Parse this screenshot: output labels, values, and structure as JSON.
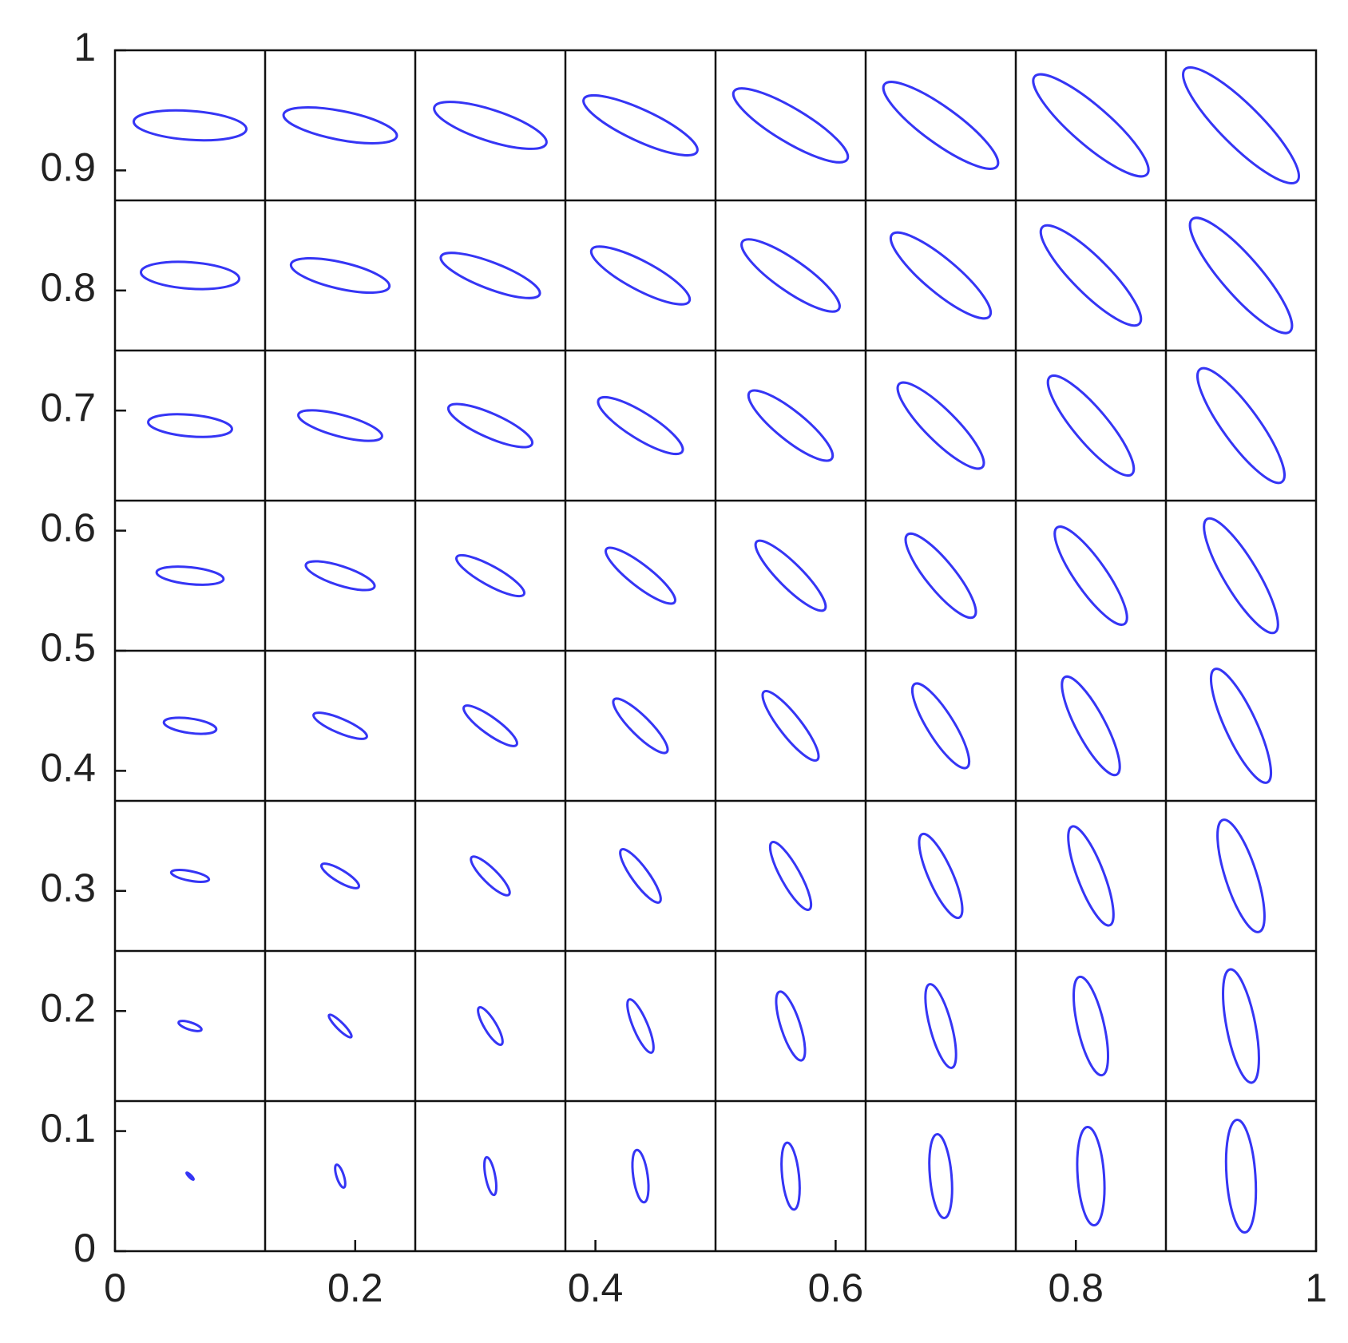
{
  "chart_data": {
    "type": "ellipse",
    "color": "#3535f5",
    "xlim": [
      0,
      1
    ],
    "ylim": [
      0,
      1
    ],
    "xticks": [
      0,
      0.2,
      0.4,
      0.6,
      0.8,
      1
    ],
    "yticks": [
      0,
      0.1,
      0.2,
      0.3,
      0.4,
      0.5,
      0.6,
      0.7,
      0.8,
      0.9,
      1
    ],
    "grid_lines": [
      0.125,
      0.25,
      0.375,
      0.5,
      0.625,
      0.75,
      0.875
    ],
    "x": [
      0.0625,
      0.1875,
      0.3125,
      0.4375,
      0.5625,
      0.6875,
      0.8125,
      0.9375,
      0.0625,
      0.1875,
      0.3125,
      0.4375,
      0.5625,
      0.6875,
      0.8125,
      0.9375,
      0.0625,
      0.1875,
      0.3125,
      0.4375,
      0.5625,
      0.6875,
      0.8125,
      0.9375,
      0.0625,
      0.1875,
      0.3125,
      0.4375,
      0.5625,
      0.6875,
      0.8125,
      0.9375,
      0.0625,
      0.1875,
      0.3125,
      0.4375,
      0.5625,
      0.6875,
      0.8125,
      0.9375,
      0.0625,
      0.1875,
      0.3125,
      0.4375,
      0.5625,
      0.6875,
      0.8125,
      0.9375,
      0.0625,
      0.1875,
      0.3125,
      0.4375,
      0.5625,
      0.6875,
      0.8125,
      0.9375,
      0.0625,
      0.1875,
      0.3125,
      0.4375,
      0.5625,
      0.6875,
      0.8125,
      0.9375
    ],
    "y": [
      0.0625,
      0.0625,
      0.0625,
      0.0625,
      0.0625,
      0.0625,
      0.0625,
      0.0625,
      0.1875,
      0.1875,
      0.1875,
      0.1875,
      0.1875,
      0.1875,
      0.1875,
      0.1875,
      0.3125,
      0.3125,
      0.3125,
      0.3125,
      0.3125,
      0.3125,
      0.3125,
      0.3125,
      0.4375,
      0.4375,
      0.4375,
      0.4375,
      0.4375,
      0.4375,
      0.4375,
      0.4375,
      0.5625,
      0.5625,
      0.5625,
      0.5625,
      0.5625,
      0.5625,
      0.5625,
      0.5625,
      0.6875,
      0.6875,
      0.6875,
      0.6875,
      0.6875,
      0.6875,
      0.6875,
      0.6875,
      0.8125,
      0.8125,
      0.8125,
      0.8125,
      0.8125,
      0.8125,
      0.8125,
      0.8125,
      0.9375,
      0.9375,
      0.9375,
      0.9375,
      0.9375,
      0.9375,
      0.9375,
      0.9375
    ],
    "semi_major": [
      0.004,
      0.01,
      0.016,
      0.022,
      0.028,
      0.035,
      0.041,
      0.047,
      0.01,
      0.013,
      0.018,
      0.024,
      0.03,
      0.036,
      0.042,
      0.048,
      0.016,
      0.018,
      0.022,
      0.027,
      0.032,
      0.038,
      0.044,
      0.049,
      0.022,
      0.024,
      0.027,
      0.031,
      0.036,
      0.041,
      0.046,
      0.052,
      0.028,
      0.03,
      0.032,
      0.036,
      0.04,
      0.044,
      0.049,
      0.055,
      0.035,
      0.036,
      0.038,
      0.041,
      0.044,
      0.049,
      0.053,
      0.058,
      0.041,
      0.042,
      0.044,
      0.046,
      0.049,
      0.053,
      0.057,
      0.062,
      0.047,
      0.048,
      0.049,
      0.052,
      0.055,
      0.058,
      0.062,
      0.066
    ],
    "semi_minor": [
      0.001,
      0.003,
      0.004,
      0.006,
      0.007,
      0.009,
      0.011,
      0.012,
      0.003,
      0.003,
      0.005,
      0.006,
      0.008,
      0.009,
      0.011,
      0.012,
      0.004,
      0.005,
      0.006,
      0.007,
      0.008,
      0.01,
      0.011,
      0.013,
      0.006,
      0.006,
      0.007,
      0.008,
      0.009,
      0.011,
      0.012,
      0.013,
      0.007,
      0.008,
      0.008,
      0.009,
      0.01,
      0.012,
      0.013,
      0.014,
      0.009,
      0.009,
      0.01,
      0.011,
      0.012,
      0.013,
      0.014,
      0.015,
      0.011,
      0.011,
      0.011,
      0.012,
      0.013,
      0.014,
      0.015,
      0.016,
      0.012,
      0.012,
      0.013,
      0.013,
      0.014,
      0.015,
      0.016,
      0.017
    ],
    "angle": [
      -45,
      -72,
      -79,
      -82,
      -84,
      -85,
      -86,
      -86,
      -18,
      -45,
      -59,
      -67,
      -72,
      -75,
      -77,
      -79,
      -11,
      -31,
      -45,
      -54,
      -61,
      -66,
      -69,
      -72,
      -8,
      -23,
      -36,
      -45,
      -52,
      -58,
      -62,
      -65,
      -6,
      -18,
      -29,
      -38,
      -45,
      -51,
      -55,
      -59,
      -5,
      -15,
      -24,
      -32,
      -39,
      -45,
      -50,
      -54,
      -4,
      -13,
      -21,
      -28,
      -35,
      -40,
      -45,
      -49,
      -4,
      -11,
      -18,
      -25,
      -31,
      -36,
      -41,
      -45
    ]
  }
}
